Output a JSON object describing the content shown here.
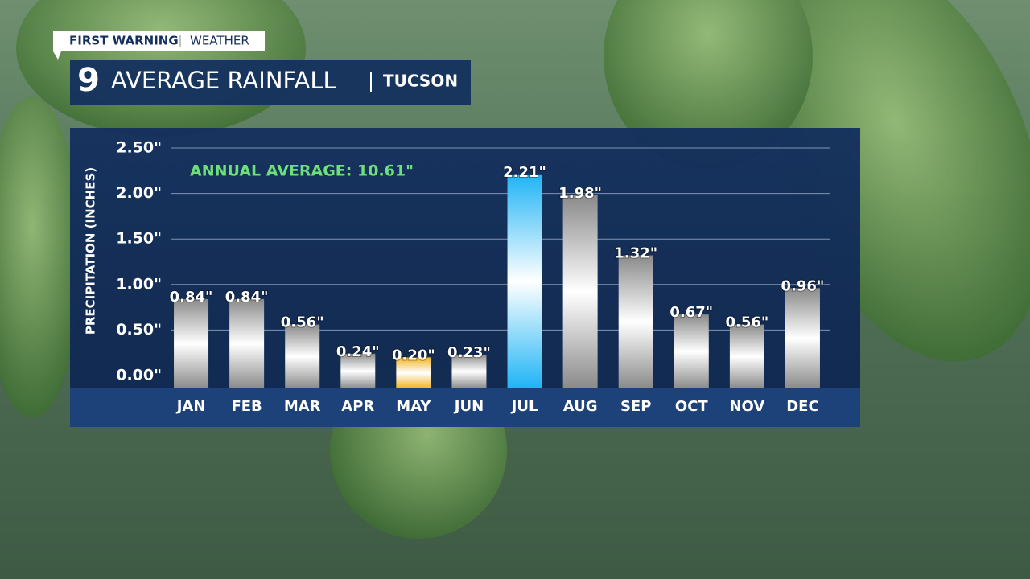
{
  "header": {
    "brand": "FIRST WARNING",
    "section": "WEATHER",
    "logo": "9"
  },
  "chart_data": {
    "type": "bar",
    "title": "AVERAGE RAINFALL",
    "subtitle": "TUCSON",
    "annotation": "ANNUAL AVERAGE: 10.61\"",
    "y_label": "PRECIPITATION (INCHES)",
    "categories": [
      "JAN",
      "FEB",
      "MAR",
      "APR",
      "MAY",
      "JUN",
      "JUL",
      "AUG",
      "SEP",
      "OCT",
      "NOV",
      "DEC"
    ],
    "values": [
      0.84,
      0.84,
      0.56,
      0.24,
      0.2,
      0.23,
      2.21,
      1.98,
      1.32,
      0.67,
      0.56,
      0.96
    ],
    "value_labels": [
      "0.84\"",
      "0.84\"",
      "0.56\"",
      "0.24\"",
      "0.20\"",
      "0.23\"",
      "2.21\"",
      "1.98\"",
      "1.32\"",
      "0.67\"",
      "0.56\"",
      "0.96\""
    ],
    "colors": [
      "#8a8a8a",
      "#8a8a8a",
      "#8a8a8a",
      "#8a8a8a",
      "#f2b21c",
      "#8a8a8a",
      "#1fb4f5",
      "#8a8a8a",
      "#8a8a8a",
      "#8a8a8a",
      "#8a8a8a",
      "#8a8a8a"
    ],
    "ylim": [
      0,
      2.5
    ],
    "yticks": [
      {
        "value": 0,
        "label": "0.00\""
      },
      {
        "value": 0.5,
        "label": "0.50\""
      },
      {
        "value": 1,
        "label": "1.00\""
      },
      {
        "value": 1.5,
        "label": "1.50\""
      },
      {
        "value": 2,
        "label": "2.00\""
      },
      {
        "value": 2.5,
        "label": "2.50\""
      }
    ],
    "grid": true
  }
}
